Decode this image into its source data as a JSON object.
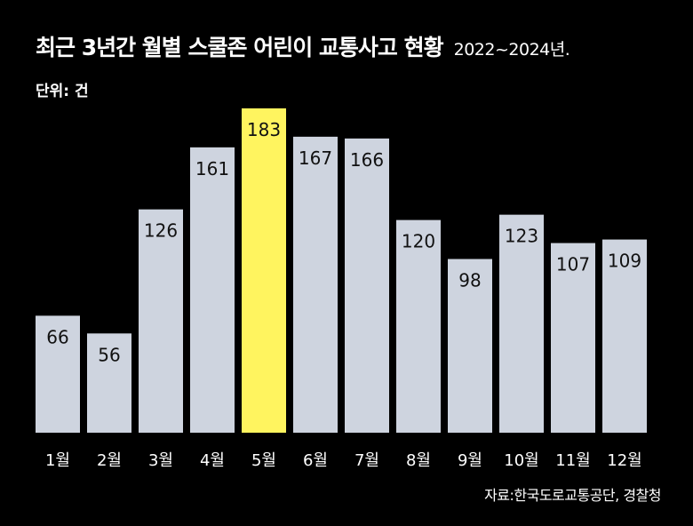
{
  "title": "최근 3년간 월별 스쿨존 어린이 교통사고 현황",
  "subtitle": "2022~2024년.",
  "unit": "단위: 건",
  "source": "자료:한국도로교통공단, 경찰청",
  "colors": {
    "background": "#000000",
    "bar": "#ced4df",
    "highlight": "#fff45f",
    "text": "#ffffff",
    "value_text": "#111111"
  },
  "chart_data": {
    "type": "bar",
    "categories": [
      "1월",
      "2월",
      "3월",
      "4월",
      "5월",
      "6월",
      "7월",
      "8월",
      "9월",
      "10월",
      "11월",
      "12월"
    ],
    "values": [
      66,
      56,
      126,
      161,
      183,
      167,
      166,
      120,
      98,
      123,
      107,
      109
    ],
    "highlight_category": "5월",
    "title": "최근 3년간 월별 스쿨존 어린이 교통사고 현황",
    "xlabel": "",
    "ylabel": "",
    "ylim": [
      0,
      192
    ],
    "grid": false,
    "legend": "none"
  }
}
